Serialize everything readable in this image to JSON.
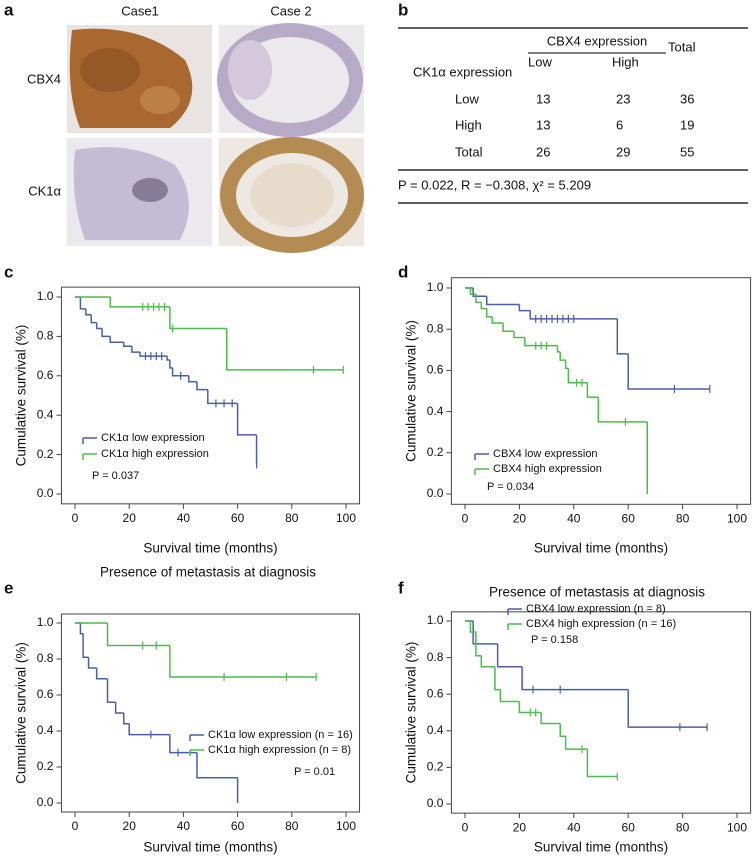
{
  "panel_labels": [
    "a",
    "b",
    "c",
    "d",
    "e",
    "f"
  ],
  "images": {
    "columns": [
      "Case1",
      "Case 2"
    ],
    "rows": [
      "CBX4",
      "CK1α"
    ]
  },
  "table": {
    "group_header": "CBX4 expression",
    "row_header": "CK1α expression",
    "columns": [
      "Low",
      "High"
    ],
    "total_header": "Total",
    "rows": [
      [
        "Low",
        13,
        23,
        36
      ],
      [
        "High",
        13,
        6,
        19
      ],
      [
        "Total",
        26,
        29,
        55
      ]
    ],
    "footer": "P = 0.022, R = −0.308, χ² = 5.209"
  },
  "chart_data": [
    {
      "type": "survival",
      "xlabel": "Survival time (months)",
      "ylabel": "Cumulative survival (%)",
      "annotation": "P = 0.037",
      "xlim": [
        -5,
        105
      ],
      "ylim": [
        -0.05,
        1.05
      ],
      "xticks": [
        0,
        20,
        40,
        60,
        80,
        100
      ],
      "yticks": [
        {
          "value": 0,
          "label": "0.0"
        },
        0.2,
        0.4,
        0.6,
        0.8,
        {
          "value": 1,
          "label": "1.0"
        }
      ],
      "series": [
        {
          "name": "CK1α low expression",
          "color": "#4b5ea8",
          "x": [
            0,
            2,
            4,
            6,
            8,
            10,
            13,
            18,
            21,
            24,
            34,
            35,
            36,
            42,
            45,
            49,
            60,
            67
          ],
          "values": [
            1.0,
            0.94,
            0.91,
            0.87,
            0.84,
            0.8,
            0.77,
            0.75,
            0.72,
            0.7,
            0.68,
            0.64,
            0.6,
            0.57,
            0.53,
            0.46,
            0.3,
            0.15
          ],
          "censor_x": [
            26,
            28,
            30,
            32,
            39,
            52,
            55,
            58,
            67
          ],
          "censor_values": [
            0.7,
            0.7,
            0.7,
            0.7,
            0.6,
            0.46,
            0.46,
            0.46,
            0.15
          ]
        },
        {
          "name": "CK1α high expression",
          "color": "#4cbb4c",
          "x": [
            0,
            13,
            35,
            56,
            99
          ],
          "values": [
            1.0,
            0.95,
            0.84,
            0.63,
            0.63
          ],
          "censor_x": [
            25,
            27,
            29,
            31,
            33,
            36,
            88,
            99
          ],
          "censor_values": [
            0.95,
            0.95,
            0.95,
            0.95,
            0.95,
            0.84,
            0.63,
            0.63
          ]
        }
      ]
    },
    {
      "type": "survival",
      "xlabel": "Survival time (months)",
      "ylabel": "Cumulative survival (%)",
      "annotation": "P = 0.034",
      "xlim": [
        -5,
        105
      ],
      "ylim": [
        -0.05,
        1.05
      ],
      "xticks": [
        0,
        20,
        40,
        60,
        80,
        100
      ],
      "yticks": [
        {
          "value": 0,
          "label": "0.0"
        },
        0.2,
        0.4,
        0.6,
        0.8,
        {
          "value": 1,
          "label": "1.0"
        }
      ],
      "series": [
        {
          "name": "CBX4 low expression",
          "color": "#4b5ea8",
          "x": [
            0,
            3,
            8,
            20,
            24,
            56,
            60,
            90
          ],
          "values": [
            1.0,
            0.96,
            0.92,
            0.89,
            0.85,
            0.68,
            0.51,
            0.51
          ],
          "censor_x": [
            26,
            28,
            30,
            32,
            34,
            36,
            38,
            40,
            77,
            90
          ],
          "censor_values": [
            0.85,
            0.85,
            0.85,
            0.85,
            0.85,
            0.85,
            0.85,
            0.85,
            0.51,
            0.51
          ]
        },
        {
          "name": "CBX4 high expression",
          "color": "#4cbb4c",
          "x": [
            0,
            2,
            4,
            6,
            8,
            10,
            14,
            18,
            22,
            34,
            35,
            37,
            38,
            45,
            49,
            67
          ],
          "values": [
            1.0,
            0.97,
            0.93,
            0.9,
            0.86,
            0.83,
            0.79,
            0.76,
            0.72,
            0.69,
            0.65,
            0.61,
            0.54,
            0.47,
            0.35,
            0.0
          ],
          "censor_x": [
            26,
            28,
            30,
            41,
            43,
            59
          ],
          "censor_values": [
            0.72,
            0.72,
            0.72,
            0.54,
            0.54,
            0.35
          ]
        }
      ]
    },
    {
      "type": "survival",
      "title": "Presence of metastasis at diagnosis",
      "xlabel": "Survival time (months)",
      "ylabel": "Cumulative survival (%)",
      "annotation": "P = 0.01",
      "xlim": [
        -5,
        105
      ],
      "ylim": [
        -0.05,
        1.05
      ],
      "xticks": [
        0,
        20,
        40,
        60,
        80,
        100
      ],
      "yticks": [
        {
          "value": 0,
          "label": "0.0"
        },
        0.2,
        0.4,
        0.6,
        0.8,
        {
          "value": 1,
          "label": "1.0"
        }
      ],
      "series": [
        {
          "name": "CK1α low expression (n = 16)",
          "color": "#4b5ea8",
          "x": [
            0,
            2,
            3,
            5,
            8,
            12,
            15,
            18,
            20,
            35,
            45,
            60
          ],
          "values": [
            1.0,
            0.94,
            0.81,
            0.75,
            0.69,
            0.56,
            0.5,
            0.44,
            0.38,
            0.28,
            0.14,
            0.0
          ],
          "censor_x": [
            28,
            38
          ],
          "censor_values": [
            0.38,
            0.28
          ]
        },
        {
          "name": "CK1α high expression (n = 8)",
          "color": "#4cbb4c",
          "x": [
            0,
            12,
            35,
            89
          ],
          "values": [
            1.0,
            0.875,
            0.7,
            0.7
          ],
          "censor_x": [
            25,
            30,
            55,
            78,
            89
          ],
          "censor_values": [
            0.875,
            0.875,
            0.7,
            0.7,
            0.7
          ]
        }
      ]
    },
    {
      "type": "survival",
      "title": "Presence of metastasis at diagnosis",
      "xlabel": "Survival time (months)",
      "ylabel": "Cumulative survival (%)",
      "annotation": "P = 0.158",
      "xlim": [
        -5,
        105
      ],
      "ylim": [
        -0.05,
        1.05
      ],
      "xticks": [
        0,
        20,
        40,
        60,
        80,
        100
      ],
      "yticks": [
        {
          "value": 0,
          "label": "0.0"
        },
        0.2,
        0.4,
        0.6,
        0.8,
        {
          "value": 1,
          "label": "1.0"
        }
      ],
      "series": [
        {
          "name": "CBX4 low expression (n = 8)",
          "color": "#4b5ea8",
          "x": [
            0,
            3,
            12,
            21,
            60,
            89
          ],
          "values": [
            1.0,
            0.875,
            0.75,
            0.625,
            0.42,
            0.42
          ],
          "censor_x": [
            25,
            35,
            79,
            89
          ],
          "censor_values": [
            0.625,
            0.625,
            0.42,
            0.42
          ]
        },
        {
          "name": "CBX4 high expression (n = 16)",
          "color": "#4cbb4c",
          "x": [
            0,
            2,
            4,
            6,
            11,
            13,
            20,
            28,
            35,
            37,
            45,
            56
          ],
          "values": [
            1.0,
            0.94,
            0.81,
            0.75,
            0.625,
            0.56,
            0.5,
            0.44,
            0.37,
            0.3,
            0.15,
            0.15
          ],
          "censor_x": [
            24,
            26,
            43,
            56
          ],
          "censor_values": [
            0.5,
            0.5,
            0.3,
            0.15
          ]
        }
      ]
    }
  ]
}
